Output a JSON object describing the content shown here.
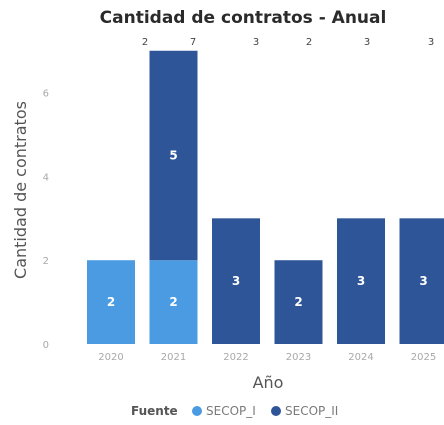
{
  "chart_data": {
    "type": "bar",
    "stacked": true,
    "title": "Cantidad de contratos - Anual",
    "xlabel": "Año",
    "ylabel": "Cantidad de contratos",
    "categories": [
      "2020",
      "2021",
      "2022",
      "2023",
      "2024",
      "2025"
    ],
    "series": [
      {
        "name": "SECOP_I",
        "values": [
          2,
          2,
          0,
          0,
          0,
          0
        ],
        "color": "#4a9be2"
      },
      {
        "name": "SECOP_II",
        "values": [
          0,
          5,
          3,
          2,
          3,
          3
        ],
        "color": "#2e5597"
      }
    ],
    "totals": [
      2,
      7,
      3,
      2,
      3,
      3
    ],
    "ylim": [
      0,
      7.4
    ],
    "yticks": [
      0,
      2,
      4,
      6
    ],
    "legend": {
      "title": "Fuente",
      "position": "bottom"
    },
    "grid": false
  }
}
